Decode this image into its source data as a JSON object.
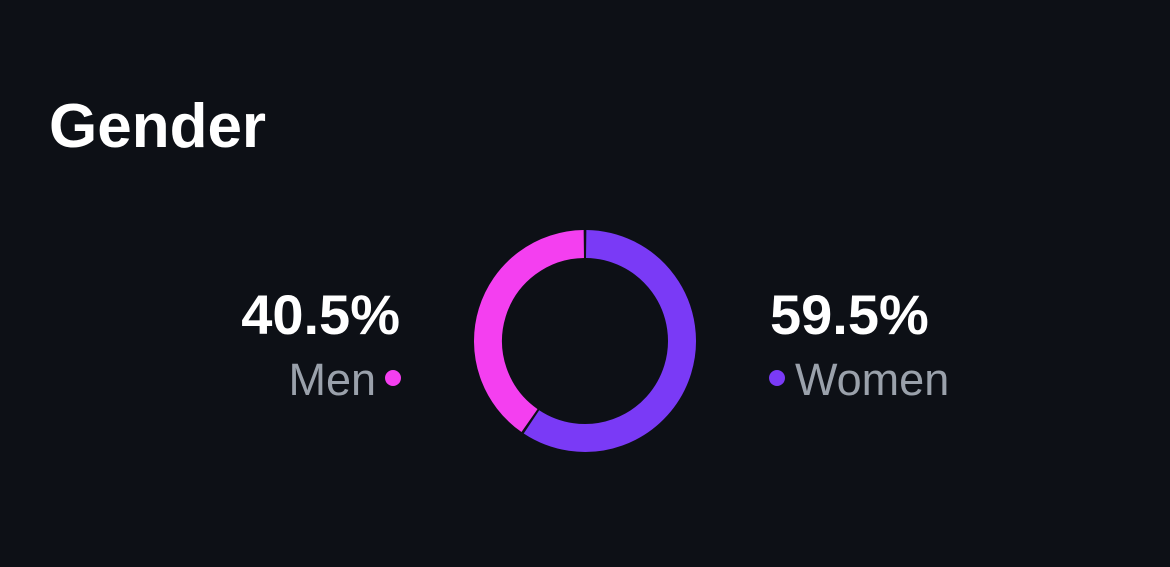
{
  "chart_data": {
    "type": "pie",
    "donut": true,
    "title": "Gender",
    "categories": [
      "Men",
      "Women"
    ],
    "values": [
      40.5,
      59.5
    ],
    "value_labels": [
      "40.5%",
      "59.5%"
    ],
    "colors": [
      "#f43ff0",
      "#7a3af6"
    ]
  }
}
